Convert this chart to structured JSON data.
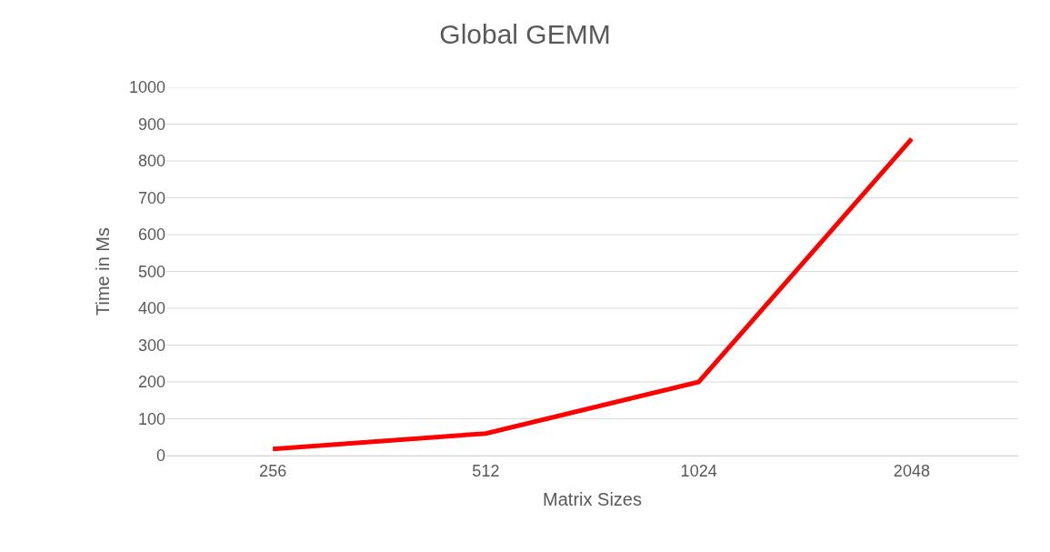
{
  "chart_data": {
    "type": "line",
    "title": "Global GEMM",
    "xlabel": "Matrix Sizes",
    "ylabel": "Time in Ms",
    "categories": [
      "256",
      "512",
      "1024",
      "2048"
    ],
    "series": [
      {
        "color": "#ff0000",
        "values": [
          18,
          60,
          200,
          860
        ]
      }
    ],
    "ylim": [
      0,
      1000
    ],
    "yticks": [
      0,
      100,
      200,
      300,
      400,
      500,
      600,
      700,
      800,
      900,
      1000
    ],
    "grid": "y",
    "marker": "none",
    "line_style": "solid"
  }
}
